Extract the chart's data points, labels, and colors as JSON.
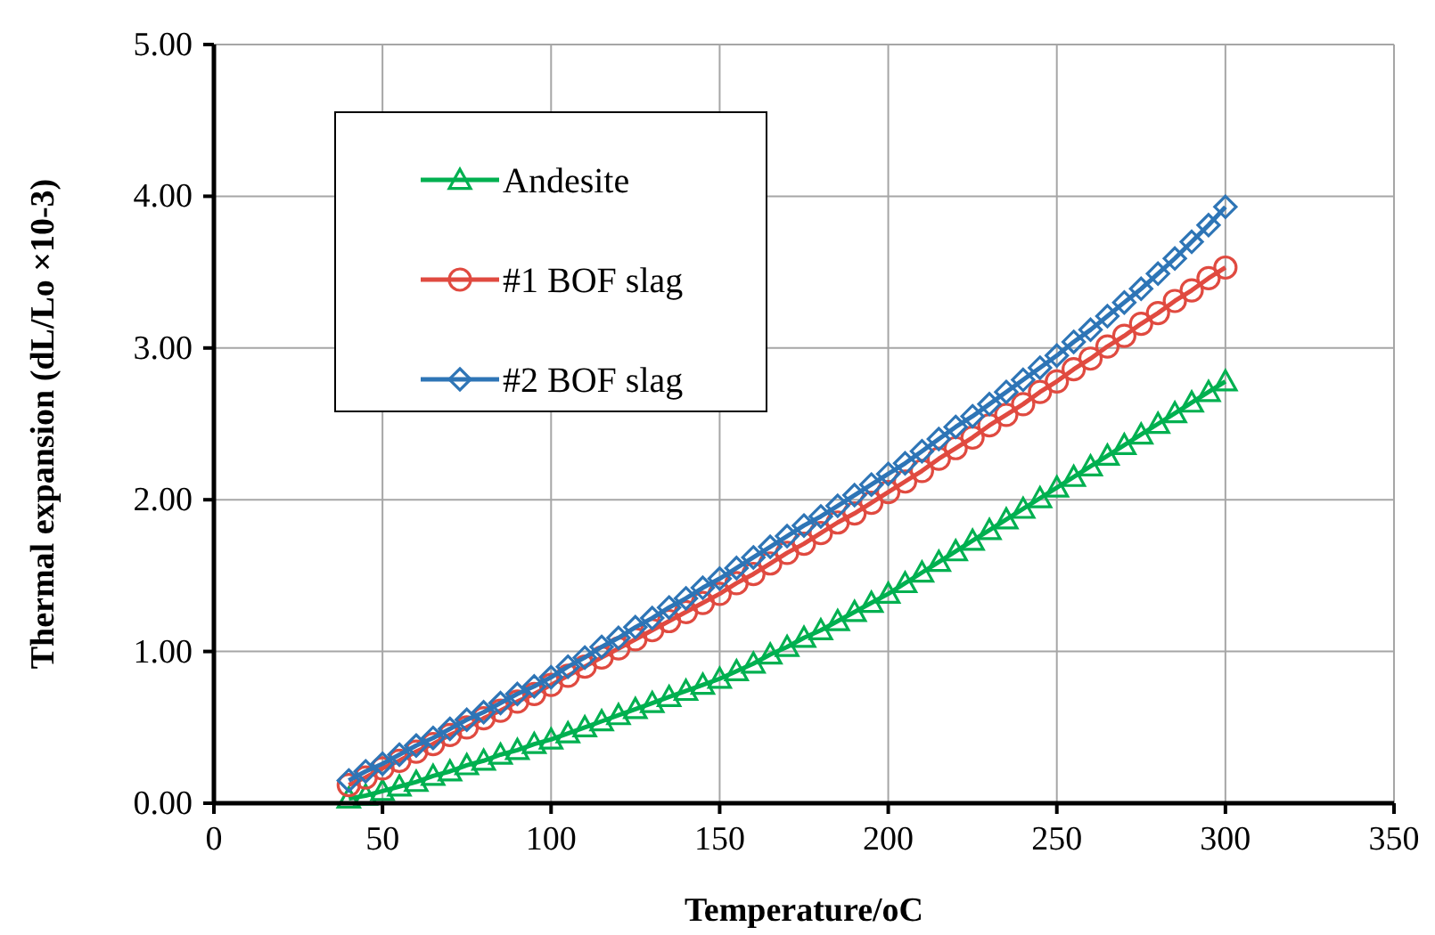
{
  "chart_data": {
    "type": "line",
    "xlabel": "Temperature/oC",
    "ylabel": "Thermal expansion (dL/Lo ×10-3)",
    "x": [
      40,
      45,
      50,
      55,
      60,
      65,
      70,
      75,
      80,
      85,
      90,
      95,
      100,
      105,
      110,
      115,
      120,
      125,
      130,
      135,
      140,
      145,
      150,
      155,
      160,
      165,
      170,
      175,
      180,
      185,
      190,
      195,
      200,
      205,
      210,
      215,
      220,
      225,
      230,
      235,
      240,
      245,
      250,
      255,
      260,
      265,
      270,
      275,
      280,
      285,
      290,
      295,
      300
    ],
    "xlim": [
      0,
      350
    ],
    "xticks": [
      0,
      50,
      100,
      150,
      200,
      250,
      300,
      350
    ],
    "ylim": [
      0,
      5
    ],
    "yticks": [
      {
        "value": 0,
        "label": "0.00"
      },
      {
        "value": 1,
        "label": "1.00"
      },
      {
        "value": 2,
        "label": "2.00"
      },
      {
        "value": 3,
        "label": "3.00"
      },
      {
        "value": 4,
        "label": "4.00"
      },
      {
        "value": 5,
        "label": "5.00"
      }
    ],
    "grid": true,
    "legend": "top left",
    "series": [
      {
        "name": "Andesite",
        "color": "#00b050",
        "marker": "triangle",
        "values": [
          0.03,
          0.05,
          0.08,
          0.11,
          0.14,
          0.18,
          0.21,
          0.25,
          0.28,
          0.32,
          0.35,
          0.39,
          0.42,
          0.46,
          0.5,
          0.54,
          0.58,
          0.62,
          0.66,
          0.7,
          0.74,
          0.78,
          0.82,
          0.87,
          0.92,
          0.98,
          1.03,
          1.09,
          1.14,
          1.2,
          1.26,
          1.32,
          1.38,
          1.45,
          1.52,
          1.59,
          1.66,
          1.73,
          1.8,
          1.87,
          1.94,
          2.01,
          2.08,
          2.15,
          2.22,
          2.29,
          2.36,
          2.43,
          2.5,
          2.57,
          2.64,
          2.71,
          2.78
        ]
      },
      {
        "name": "#1 BOF slag",
        "color": "#e04a40",
        "marker": "circle",
        "values": [
          0.12,
          0.17,
          0.23,
          0.28,
          0.34,
          0.39,
          0.45,
          0.5,
          0.56,
          0.61,
          0.67,
          0.72,
          0.78,
          0.84,
          0.9,
          0.96,
          1.02,
          1.08,
          1.14,
          1.2,
          1.26,
          1.32,
          1.38,
          1.45,
          1.51,
          1.58,
          1.65,
          1.71,
          1.78,
          1.85,
          1.91,
          1.98,
          2.05,
          2.12,
          2.19,
          2.27,
          2.34,
          2.41,
          2.49,
          2.56,
          2.63,
          2.71,
          2.78,
          2.86,
          2.93,
          3.01,
          3.08,
          3.16,
          3.23,
          3.31,
          3.38,
          3.46,
          3.53
        ]
      },
      {
        "name": "#2 BOF slag",
        "color": "#2e75b6",
        "marker": "diamond",
        "values": [
          0.15,
          0.21,
          0.26,
          0.32,
          0.38,
          0.43,
          0.49,
          0.55,
          0.6,
          0.66,
          0.72,
          0.77,
          0.83,
          0.9,
          0.96,
          1.03,
          1.09,
          1.16,
          1.22,
          1.29,
          1.35,
          1.42,
          1.48,
          1.55,
          1.62,
          1.69,
          1.76,
          1.83,
          1.89,
          1.96,
          2.03,
          2.1,
          2.17,
          2.24,
          2.32,
          2.4,
          2.48,
          2.55,
          2.63,
          2.71,
          2.79,
          2.87,
          2.95,
          3.04,
          3.12,
          3.21,
          3.3,
          3.39,
          3.49,
          3.59,
          3.7,
          3.81,
          3.93
        ]
      }
    ]
  }
}
